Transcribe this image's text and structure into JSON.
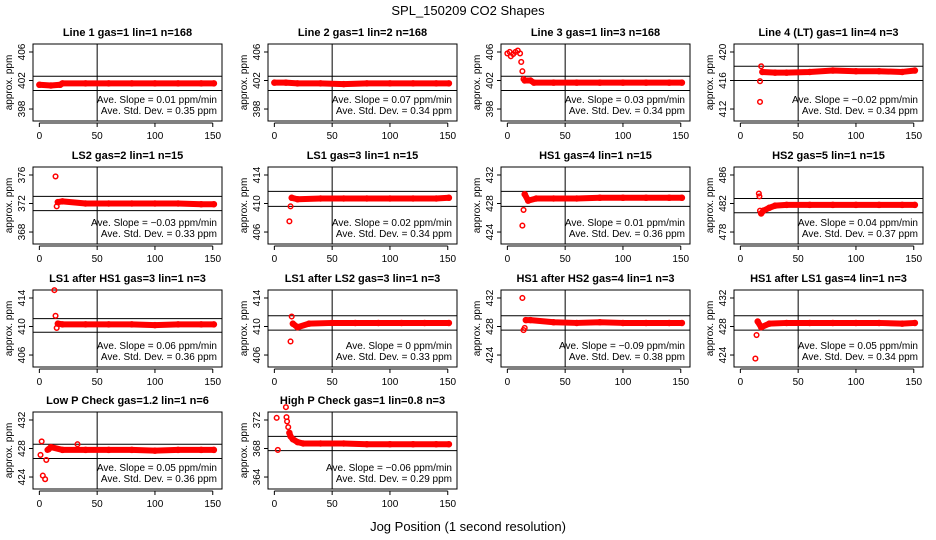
{
  "title": "SPL_150209  CO2 Shapes",
  "xlabel": "Jog Position (1 second resolution)",
  "colors": {
    "points": "#ff0000",
    "axes": "#000000"
  },
  "chart_data": {
    "type": "scatter",
    "xlim": [
      -5.5,
      158
    ],
    "xticks": [
      0,
      50,
      100,
      150
    ],
    "ylabel": "approx. ppm",
    "vline_x": 50,
    "panels": [
      {
        "title": "Line 1 gas=1 lin=1 n=168",
        "yticks": [
          398,
          402,
          406
        ],
        "ylim": [
          396.32,
          407.12
        ],
        "hlines": [
          402.6,
          400.6
        ],
        "slope_text": "Ave. Slope =  0.01  ppm/min",
        "sd_text": "Ave. Std. Dev. =  0.35  ppm",
        "points": [],
        "band": [
          [
            0,
            401.4
          ],
          [
            10,
            401.3
          ],
          [
            18,
            401.4
          ],
          [
            20,
            401.6
          ],
          [
            40,
            401.6
          ],
          [
            60,
            401.6
          ],
          [
            80,
            401.6
          ],
          [
            100,
            401.6
          ],
          [
            120,
            401.6
          ],
          [
            140,
            401.6
          ],
          [
            151,
            401.6
          ]
        ]
      },
      {
        "title": "Line 2 gas=1 lin=2 n=168",
        "yticks": [
          398,
          402,
          406
        ],
        "ylim": [
          396.32,
          407.12
        ],
        "hlines": [
          402.6,
          400.6
        ],
        "slope_text": "Ave. Slope =  0.07  ppm/min",
        "sd_text": "Ave. Std. Dev. =  0.34  ppm",
        "points": [],
        "band": [
          [
            0,
            401.7
          ],
          [
            10,
            401.7
          ],
          [
            20,
            401.6
          ],
          [
            40,
            401.6
          ],
          [
            60,
            401.5
          ],
          [
            80,
            401.6
          ],
          [
            100,
            401.6
          ],
          [
            120,
            401.6
          ],
          [
            140,
            401.6
          ],
          [
            151,
            401.6
          ]
        ]
      },
      {
        "title": "Line 3 gas=1 lin=3 n=168",
        "yticks": [
          398,
          402,
          406
        ],
        "ylim": [
          396.32,
          407.12
        ],
        "hlines": [
          402.6,
          400.6
        ],
        "slope_text": "Ave. Slope =  0.03  ppm/min",
        "sd_text": "Ave. Std. Dev. =  0.34  ppm",
        "points": [
          [
            0,
            405.8
          ],
          [
            2,
            406
          ],
          [
            3,
            405.4
          ],
          [
            5,
            405.7
          ],
          [
            7,
            406
          ],
          [
            9,
            406.2
          ],
          [
            11,
            405.8
          ],
          [
            12,
            404.6
          ],
          [
            13,
            403.3
          ],
          [
            14,
            402.2
          ]
        ],
        "band": [
          [
            15,
            402
          ],
          [
            20,
            402
          ],
          [
            23,
            401.7
          ],
          [
            40,
            401.7
          ],
          [
            60,
            401.7
          ],
          [
            80,
            401.7
          ],
          [
            100,
            401.7
          ],
          [
            120,
            401.7
          ],
          [
            140,
            401.7
          ],
          [
            151,
            401.7
          ]
        ]
      },
      {
        "title": "Line 4 (LT) gas=1 lin=4 n=3",
        "yticks": [
          412,
          416,
          420
        ],
        "ylim": [
          410.32,
          421.12
        ],
        "hlines": [
          418.0,
          416.0
        ],
        "slope_text": "Ave. Slope =  −0.02  ppm/min",
        "sd_text": "Ave. Std. Dev. =  0.34  ppm",
        "points": [
          [
            17,
            413
          ],
          [
            17,
            415.9
          ],
          [
            18,
            418
          ]
        ],
        "band": [
          [
            19,
            417.2
          ],
          [
            30,
            417.1
          ],
          [
            40,
            417.1
          ],
          [
            60,
            417.2
          ],
          [
            80,
            417.4
          ],
          [
            100,
            417.3
          ],
          [
            120,
            417.3
          ],
          [
            140,
            417.2
          ],
          [
            151,
            417.4
          ]
        ]
      },
      {
        "title": "LS2 gas=2 lin=1 n=15",
        "yticks": [
          368,
          372,
          376
        ],
        "ylim": [
          366.32,
          377.12
        ],
        "hlines": [
          373.0,
          371.0
        ],
        "slope_text": "Ave. Slope =  −0.03  ppm/min",
        "sd_text": "Ave. Std. Dev. =  0.33  ppm",
        "points": [
          [
            14,
            375.8
          ],
          [
            15,
            371.6
          ]
        ],
        "band": [
          [
            16,
            372.2
          ],
          [
            20,
            372.3
          ],
          [
            40,
            372
          ],
          [
            60,
            372
          ],
          [
            80,
            372
          ],
          [
            100,
            372
          ],
          [
            120,
            372
          ],
          [
            140,
            371.9
          ],
          [
            151,
            371.9
          ]
        ]
      },
      {
        "title": "LS1 gas=3 lin=1 n=15",
        "yticks": [
          406,
          410,
          414
        ],
        "ylim": [
          404.32,
          415.12
        ],
        "hlines": [
          411.7,
          409.6
        ],
        "slope_text": "Ave. Slope =  0.02  ppm/min",
        "sd_text": "Ave. Std. Dev. =  0.34  ppm",
        "points": [
          [
            13,
            407.5
          ],
          [
            14,
            409.6
          ]
        ],
        "band": [
          [
            15,
            410.8
          ],
          [
            20,
            410.6
          ],
          [
            40,
            410.7
          ],
          [
            60,
            410.7
          ],
          [
            80,
            410.7
          ],
          [
            100,
            410.7
          ],
          [
            120,
            410.7
          ],
          [
            140,
            410.7
          ],
          [
            151,
            410.8
          ]
        ]
      },
      {
        "title": "HS1 gas=4 lin=1 n=15",
        "yticks": [
          424,
          428,
          432
        ],
        "ylim": [
          422.32,
          433.12
        ],
        "hlines": [
          429.7,
          427.6
        ],
        "slope_text": "Ave. Slope =  0.01  ppm/min",
        "sd_text": "Ave. Std. Dev. =  0.36  ppm",
        "points": [
          [
            13,
            424.9
          ],
          [
            14,
            427.1
          ]
        ],
        "band": [
          [
            15,
            429.3
          ],
          [
            18,
            428.4
          ],
          [
            25,
            428.7
          ],
          [
            40,
            428.7
          ],
          [
            60,
            428.7
          ],
          [
            80,
            428.8
          ],
          [
            100,
            428.8
          ],
          [
            120,
            428.8
          ],
          [
            140,
            428.8
          ],
          [
            151,
            428.8
          ]
        ]
      },
      {
        "title": "HS2 gas=5 lin=1 n=15",
        "yticks": [
          478,
          482,
          486
        ],
        "ylim": [
          476.32,
          487.12
        ],
        "hlines": [
          482.7,
          480.7
        ],
        "slope_text": "Ave. Slope =  0.04  ppm/min",
        "sd_text": "Ave. Std. Dev. =  0.37  ppm",
        "points": [
          [
            16,
            483.4
          ],
          [
            16.5,
            483
          ],
          [
            17,
            481
          ]
        ],
        "band": [
          [
            18,
            480.6
          ],
          [
            20,
            481
          ],
          [
            25,
            481.4
          ],
          [
            30,
            481.7
          ],
          [
            40,
            481.8
          ],
          [
            60,
            481.8
          ],
          [
            80,
            481.8
          ],
          [
            100,
            481.8
          ],
          [
            120,
            481.8
          ],
          [
            140,
            481.8
          ],
          [
            151,
            481.8
          ]
        ]
      },
      {
        "title": "LS1 after HS1 gas=3 lin=1 n=3",
        "yticks": [
          406,
          410,
          414
        ],
        "ylim": [
          404.32,
          415.12
        ],
        "hlines": [
          411.1,
          409.2
        ],
        "slope_text": "Ave. Slope =  0.06  ppm/min",
        "sd_text": "Ave. Std. Dev. =  0.36  ppm",
        "points": [
          [
            13,
            415.1
          ],
          [
            14,
            411.5
          ],
          [
            15,
            409.8
          ]
        ],
        "band": [
          [
            16,
            410.4
          ],
          [
            20,
            410.3
          ],
          [
            40,
            410.3
          ],
          [
            60,
            410.3
          ],
          [
            80,
            410.3
          ],
          [
            100,
            410.2
          ],
          [
            120,
            410.3
          ],
          [
            140,
            410.3
          ],
          [
            151,
            410.3
          ]
        ]
      },
      {
        "title": "LS1 after LS2 gas=3 lin=1 n=3",
        "yticks": [
          406,
          410,
          414
        ],
        "ylim": [
          404.32,
          415.12
        ],
        "hlines": [
          411.5,
          409.5
        ],
        "slope_text": "Ave. Slope =  0  ppm/min",
        "sd_text": "Ave. Std. Dev. =  0.33  ppm",
        "points": [
          [
            14,
            407.9
          ],
          [
            15,
            411.4
          ]
        ],
        "band": [
          [
            16,
            410.4
          ],
          [
            20,
            409.9
          ],
          [
            30,
            410.4
          ],
          [
            50,
            410.5
          ],
          [
            70,
            410.5
          ],
          [
            90,
            410.5
          ],
          [
            110,
            410.5
          ],
          [
            130,
            410.5
          ],
          [
            151,
            410.5
          ]
        ]
      },
      {
        "title": "HS1 after HS2 gas=4 lin=1 n=3",
        "yticks": [
          424,
          428,
          432
        ],
        "ylim": [
          422.32,
          433.12
        ],
        "hlines": [
          429.5,
          427.5
        ],
        "slope_text": "Ave. Slope =  −0.09  ppm/min",
        "sd_text": "Ave. Std. Dev. =  0.38  ppm",
        "points": [
          [
            13,
            432
          ],
          [
            14,
            427.5
          ],
          [
            15,
            427.8
          ]
        ],
        "band": [
          [
            16,
            428.9
          ],
          [
            20,
            428.9
          ],
          [
            40,
            428.6
          ],
          [
            60,
            428.5
          ],
          [
            80,
            428.6
          ],
          [
            100,
            428.5
          ],
          [
            120,
            428.5
          ],
          [
            140,
            428.5
          ],
          [
            151,
            428.5
          ]
        ]
      },
      {
        "title": "HS1 after LS1 gas=4 lin=1 n=3",
        "yticks": [
          424,
          428,
          432
        ],
        "ylim": [
          422.32,
          433.12
        ],
        "hlines": [
          429.5,
          427.5
        ],
        "slope_text": "Ave. Slope =  0.05  ppm/min",
        "sd_text": "Ave. Std. Dev. =  0.34  ppm",
        "points": [
          [
            13,
            423.5
          ],
          [
            14,
            426.8
          ]
        ],
        "band": [
          [
            15,
            428.7
          ],
          [
            18,
            427.9
          ],
          [
            25,
            428.4
          ],
          [
            40,
            428.5
          ],
          [
            60,
            428.5
          ],
          [
            80,
            428.5
          ],
          [
            100,
            428.5
          ],
          [
            120,
            428.5
          ],
          [
            140,
            428.4
          ],
          [
            151,
            428.5
          ]
        ]
      },
      {
        "title": "Low P Check gas=1.2 lin=1 n=6",
        "yticks": [
          424,
          428,
          432
        ],
        "ylim": [
          422.32,
          433.12
        ],
        "hlines": [
          428.6,
          426.6
        ],
        "slope_text": "Ave. Slope =  0.05  ppm/min",
        "sd_text": "Ave. Std. Dev. =  0.36  ppm",
        "points": [
          [
            1,
            427.1
          ],
          [
            2,
            429
          ],
          [
            3,
            424.2
          ],
          [
            5,
            423.7
          ],
          [
            6,
            426.4
          ],
          [
            7,
            427.8
          ],
          [
            33,
            428.6
          ]
        ],
        "band": [
          [
            8,
            427.9
          ],
          [
            10,
            428.2
          ],
          [
            20,
            427.8
          ],
          [
            40,
            427.8
          ],
          [
            60,
            427.8
          ],
          [
            80,
            427.8
          ],
          [
            100,
            427.7
          ],
          [
            120,
            427.8
          ],
          [
            140,
            427.8
          ],
          [
            151,
            427.8
          ]
        ]
      },
      {
        "title": "High P Check gas=1 lin=0.8 n=3",
        "yticks": [
          364,
          368,
          372
        ],
        "ylim": [
          362.32,
          373.12
        ],
        "hlines": [
          369.7,
          367.7
        ],
        "slope_text": "Ave. Slope =  −0.06  ppm/min",
        "sd_text": "Ave. Std. Dev. =  0.29  ppm",
        "points": [
          [
            2,
            372.3
          ],
          [
            3,
            367.8
          ],
          [
            10,
            373.8
          ],
          [
            10.5,
            372.4
          ],
          [
            11,
            371.8
          ],
          [
            12,
            371
          ]
        ],
        "band": [
          [
            13,
            370.2
          ],
          [
            14,
            369.7
          ],
          [
            16,
            369.3
          ],
          [
            20,
            368.9
          ],
          [
            25,
            368.7
          ],
          [
            40,
            368.7
          ],
          [
            60,
            368.7
          ],
          [
            80,
            368.6
          ],
          [
            100,
            368.6
          ],
          [
            120,
            368.6
          ],
          [
            140,
            368.6
          ],
          [
            151,
            368.6
          ]
        ]
      }
    ]
  }
}
